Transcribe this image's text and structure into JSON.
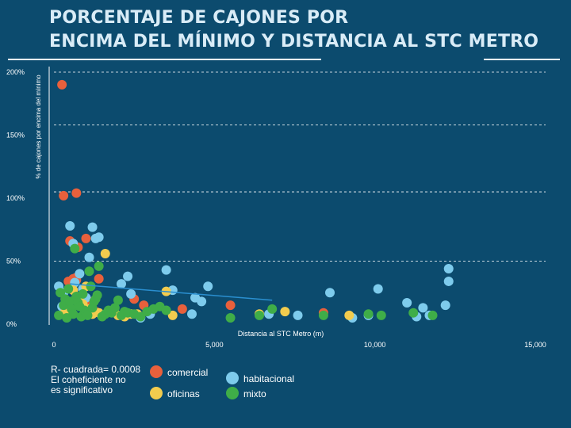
{
  "header": {
    "title_line1": "PORCENTAJE DE CAJONES POR",
    "title_line2": "ENCIMA DEL MÍNIMO Y DISTANCIA AL STC METRO"
  },
  "note": {
    "line1": "R- cuadrada= 0.0008",
    "line2": "El coheficiente no",
    "line3": "es significativo"
  },
  "chart_data": {
    "type": "scatter",
    "title": "",
    "xlabel": "Distancia al STC Metro (m)",
    "ylabel": "% de cajones por encima del mínimo",
    "xlim": [
      0,
      15000
    ],
    "ylim": [
      0,
      200
    ],
    "xticks": [
      0,
      5000,
      10000,
      15000
    ],
    "xtick_labels": [
      "0",
      "5,000",
      "10,000",
      "15,000"
    ],
    "yticks": [
      0,
      50,
      100,
      150,
      200
    ],
    "ytick_labels": [
      "0%",
      "50%",
      "100%",
      "150%",
      "200%"
    ],
    "gridlines_y": [
      50,
      105,
      158,
      200
    ],
    "trendline": {
      "x": [
        500,
        6800
      ],
      "y": [
        32,
        19
      ]
    },
    "series": [
      {
        "name": "comercial",
        "color": "#e8603c",
        "x": [
          250,
          300,
          500,
          700,
          750,
          1000,
          1100,
          700,
          800,
          1200,
          950,
          450,
          600,
          700,
          900,
          1300,
          1200,
          1400,
          2500,
          2800,
          4000,
          5500,
          8400
        ],
        "y": [
          190,
          102,
          66,
          37,
          61,
          68,
          16,
          104,
          18,
          18,
          15,
          34,
          36,
          35,
          22,
          10,
          8,
          36,
          20,
          15,
          12,
          15,
          9
        ]
      },
      {
        "name": "habitacional",
        "color": "#7ecbec",
        "x": [
          150,
          250,
          300,
          350,
          500,
          600,
          650,
          800,
          900,
          1000,
          1100,
          1200,
          1300,
          1400,
          2100,
          2300,
          2400,
          2700,
          3000,
          3500,
          3700,
          4300,
          4400,
          4600,
          4800,
          6700,
          7600,
          8600,
          9300,
          9800,
          10100,
          11000,
          11300,
          11500,
          11700,
          12200,
          12300,
          12300
        ],
        "y": [
          30,
          14,
          25,
          12,
          78,
          64,
          33,
          40,
          28,
          21,
          53,
          77,
          68,
          69,
          32,
          38,
          24,
          5,
          8,
          43,
          27,
          8,
          21,
          18,
          30,
          8,
          7,
          25,
          5,
          7,
          28,
          17,
          6,
          13,
          7,
          15,
          44,
          34
        ]
      },
      {
        "name": "oficinas",
        "color": "#f2cc4e",
        "x": [
          350,
          600,
          700,
          800,
          900,
          1000,
          1100,
          1200,
          1400,
          1600,
          2000,
          2200,
          2400,
          2600,
          3500,
          3700,
          6400,
          7200,
          9200
        ],
        "y": [
          10,
          27,
          22,
          18,
          16,
          30,
          12,
          8,
          9,
          56,
          7,
          6,
          8,
          8,
          26,
          7,
          8,
          10,
          7
        ]
      },
      {
        "name": "mixto",
        "color": "#3fad48",
        "x": [
          150,
          200,
          300,
          350,
          400,
          450,
          500,
          550,
          600,
          650,
          700,
          750,
          800,
          850,
          900,
          950,
          1000,
          1050,
          1100,
          1150,
          1200,
          1250,
          1300,
          1350,
          1400,
          1500,
          1600,
          1700,
          1800,
          1900,
          2000,
          2100,
          2200,
          2300,
          2500,
          2700,
          2900,
          3100,
          3300,
          3500,
          5500,
          6400,
          6800,
          8400,
          9800,
          10200,
          11200,
          11800
        ],
        "y": [
          7,
          25,
          15,
          20,
          5,
          28,
          18,
          12,
          8,
          60,
          22,
          17,
          14,
          6,
          24,
          11,
          9,
          7,
          42,
          30,
          13,
          18,
          20,
          23,
          46,
          6,
          8,
          11,
          9,
          13,
          19,
          7,
          10,
          9,
          8,
          6,
          10,
          12,
          14,
          11,
          5,
          7,
          12,
          7,
          8,
          7,
          9,
          7
        ]
      }
    ],
    "legend": [
      {
        "name": "comercial",
        "color": "#e8603c"
      },
      {
        "name": "oficinas",
        "color": "#f2cc4e"
      },
      {
        "name": "habitacional",
        "color": "#7ecbec"
      },
      {
        "name": "mixto",
        "color": "#3fad48"
      }
    ]
  }
}
